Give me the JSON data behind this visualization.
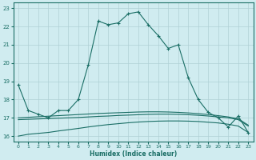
{
  "xlabel": "Humidex (Indice chaleur)",
  "x": [
    0,
    1,
    2,
    3,
    4,
    5,
    6,
    7,
    8,
    9,
    10,
    11,
    12,
    13,
    14,
    15,
    16,
    17,
    18,
    19,
    20,
    21,
    22,
    23
  ],
  "line_main": [
    18.8,
    17.4,
    17.2,
    17.0,
    17.4,
    17.4,
    18.0,
    19.9,
    22.3,
    22.1,
    22.2,
    22.7,
    22.8,
    22.1,
    21.5,
    20.8,
    21.0,
    19.2,
    18.0,
    17.3,
    17.0,
    16.5,
    17.1,
    16.2
  ],
  "line_diag1": [
    16.0,
    16.1,
    16.15,
    16.2,
    16.28,
    16.35,
    16.42,
    16.5,
    16.57,
    16.63,
    16.68,
    16.73,
    16.77,
    16.8,
    16.82,
    16.83,
    16.83,
    16.82,
    16.8,
    16.76,
    16.72,
    16.65,
    16.55,
    16.2
  ],
  "line_diag2": [
    16.9,
    16.92,
    16.94,
    16.96,
    16.98,
    17.0,
    17.02,
    17.05,
    17.08,
    17.1,
    17.13,
    17.15,
    17.17,
    17.19,
    17.2,
    17.2,
    17.19,
    17.17,
    17.14,
    17.1,
    17.05,
    17.0,
    16.9,
    16.55
  ],
  "line_diag3": [
    17.0,
    17.03,
    17.06,
    17.09,
    17.12,
    17.15,
    17.18,
    17.21,
    17.24,
    17.26,
    17.28,
    17.3,
    17.32,
    17.33,
    17.33,
    17.32,
    17.3,
    17.27,
    17.23,
    17.18,
    17.12,
    17.05,
    16.95,
    16.6
  ],
  "bg_color": "#d0ecf0",
  "grid_color": "#afd0d6",
  "line_color": "#1a6e65",
  "ylim": [
    15.7,
    23.3
  ],
  "xlim": [
    -0.5,
    23.5
  ],
  "yticks": [
    16,
    17,
    18,
    19,
    20,
    21,
    22,
    23
  ],
  "xticks": [
    0,
    1,
    2,
    3,
    4,
    5,
    6,
    7,
    8,
    9,
    10,
    11,
    12,
    13,
    14,
    15,
    16,
    17,
    18,
    19,
    20,
    21,
    22,
    23
  ]
}
